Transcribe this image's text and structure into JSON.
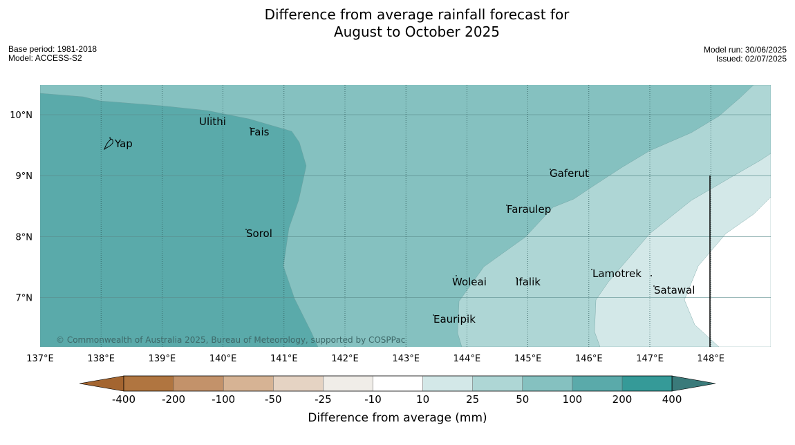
{
  "title": {
    "line1": "Difference from average rainfall forecast for",
    "line2": "August to October 2025"
  },
  "meta": {
    "base_period": "Base period: 1981-2018",
    "model": "Model: ACCESS-S2",
    "model_run": "Model run: 30/06/2025",
    "issued": "Issued: 02/07/2025"
  },
  "map": {
    "lon_ticks": [
      "137°E",
      "138°E",
      "139°E",
      "140°E",
      "141°E",
      "142°E",
      "143°E",
      "144°E",
      "145°E",
      "146°E",
      "147°E",
      "148°E"
    ],
    "lat_ticks": [
      "10°N",
      "9°N",
      "8°N",
      "7°N"
    ],
    "places": [
      {
        "name": "Yap"
      },
      {
        "name": "Ulithi"
      },
      {
        "name": "Fais"
      },
      {
        "name": "Gaferut"
      },
      {
        "name": "Faraulep"
      },
      {
        "name": "Sorol"
      },
      {
        "name": "Lamotrek"
      },
      {
        "name": "Woleai"
      },
      {
        "name": "Ifalik"
      },
      {
        "name": "Satawal"
      },
      {
        "name": "Eauripik"
      }
    ],
    "copyright": "© Commonwealth of Australia 2025, Bureau of Meteorology, supported by COSPPac",
    "colors": {
      "c200": "#5aaaaa",
      "c100": "#85c1c0",
      "c50": "#aed6d5",
      "c25": "#d3e8e8",
      "c10": "#ffffff"
    }
  },
  "legend": {
    "title": "Difference from average (mm)",
    "ticks": [
      "-400",
      "-200",
      "-100",
      "-50",
      "-25",
      "-10",
      "10",
      "25",
      "50",
      "100",
      "200",
      "400"
    ],
    "colors": [
      "#a46530",
      "#b07540",
      "#c3926a",
      "#d6b394",
      "#e5d3c3",
      "#f0ede8",
      "#ffffff",
      "#d3e8e8",
      "#aed6d5",
      "#85c1c0",
      "#5aaaaa",
      "#359a98",
      "#3a7a7a"
    ]
  }
}
